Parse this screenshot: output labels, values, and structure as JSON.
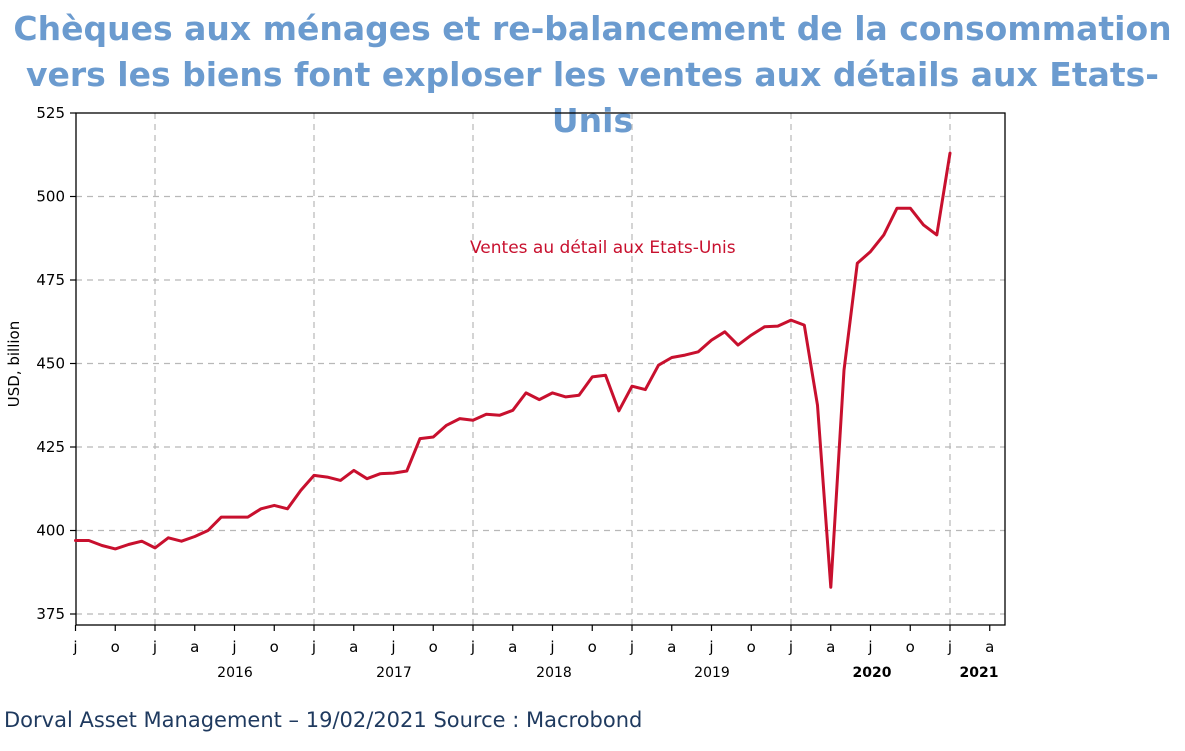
{
  "title_line1": "Chèques aux ménages et re-balancement de la consommation",
  "title_line2": "vers les biens font exploser les ventes aux détails aux Etats-Unis",
  "footer_text": "Dorval Asset Management – 19/02/2021",
  "footer_source": " Source : Macrobond",
  "chart_data": {
    "type": "line",
    "ylabel": "USD, billion",
    "ylim": [
      375,
      525
    ],
    "yticks": [
      375,
      400,
      425,
      450,
      475,
      500,
      525
    ],
    "grid": true,
    "line_color": "#c8102e",
    "month_tick_labels": [
      "j",
      "o",
      "j",
      "a",
      "j",
      "o",
      "j",
      "a",
      "j",
      "o",
      "j",
      "a",
      "j",
      "o",
      "j",
      "a",
      "j",
      "o",
      "j",
      "a",
      "j",
      "o",
      "j",
      "a"
    ],
    "year_labels": [
      {
        "label": "2016",
        "bold": false
      },
      {
        "label": "2017",
        "bold": false
      },
      {
        "label": "2018",
        "bold": false
      },
      {
        "label": "2019",
        "bold": false
      },
      {
        "label": "2020",
        "bold": true
      },
      {
        "label": "2021",
        "bold": true
      }
    ],
    "series": [
      {
        "name": "Ventes au détail aux Etats-Unis",
        "x": [
          "2015-07",
          "2015-08",
          "2015-09",
          "2015-10",
          "2015-11",
          "2015-12",
          "2016-01",
          "2016-02",
          "2016-03",
          "2016-04",
          "2016-05",
          "2016-06",
          "2016-07",
          "2016-08",
          "2016-09",
          "2016-10",
          "2016-11",
          "2016-12",
          "2017-01",
          "2017-02",
          "2017-03",
          "2017-04",
          "2017-05",
          "2017-06",
          "2017-07",
          "2017-08",
          "2017-09",
          "2017-10",
          "2017-11",
          "2017-12",
          "2018-01",
          "2018-02",
          "2018-03",
          "2018-04",
          "2018-05",
          "2018-06",
          "2018-07",
          "2018-08",
          "2018-09",
          "2018-10",
          "2018-11",
          "2018-12",
          "2019-01",
          "2019-02",
          "2019-03",
          "2019-04",
          "2019-05",
          "2019-06",
          "2019-07",
          "2019-08",
          "2019-09",
          "2019-10",
          "2019-11",
          "2019-12",
          "2020-01",
          "2020-02",
          "2020-03",
          "2020-04",
          "2020-05",
          "2020-06",
          "2020-07",
          "2020-08",
          "2020-09",
          "2020-10",
          "2020-11",
          "2020-12",
          "2021-01"
        ],
        "values": [
          397,
          397,
          395.5,
          394.5,
          395.8,
          396.8,
          394.8,
          397.8,
          396.8,
          398.2,
          400,
          404,
          404,
          404,
          406.5,
          407.5,
          406.5,
          412,
          416.5,
          416,
          415,
          418,
          415.5,
          417,
          417.2,
          417.8,
          427.5,
          428,
          431.5,
          433.5,
          433,
          434.8,
          434.5,
          436,
          441.2,
          439.2,
          441.2,
          440,
          440.5,
          446,
          446.5,
          435.8,
          443.2,
          442.2,
          449.5,
          451.8,
          452.5,
          453.5,
          457,
          459.5,
          455.5,
          458.5,
          461,
          461.2,
          463,
          461.5,
          437.5,
          383,
          448,
          480,
          483.5,
          488.5,
          496.5,
          496.5,
          491.5,
          488.5,
          513
        ]
      }
    ]
  }
}
